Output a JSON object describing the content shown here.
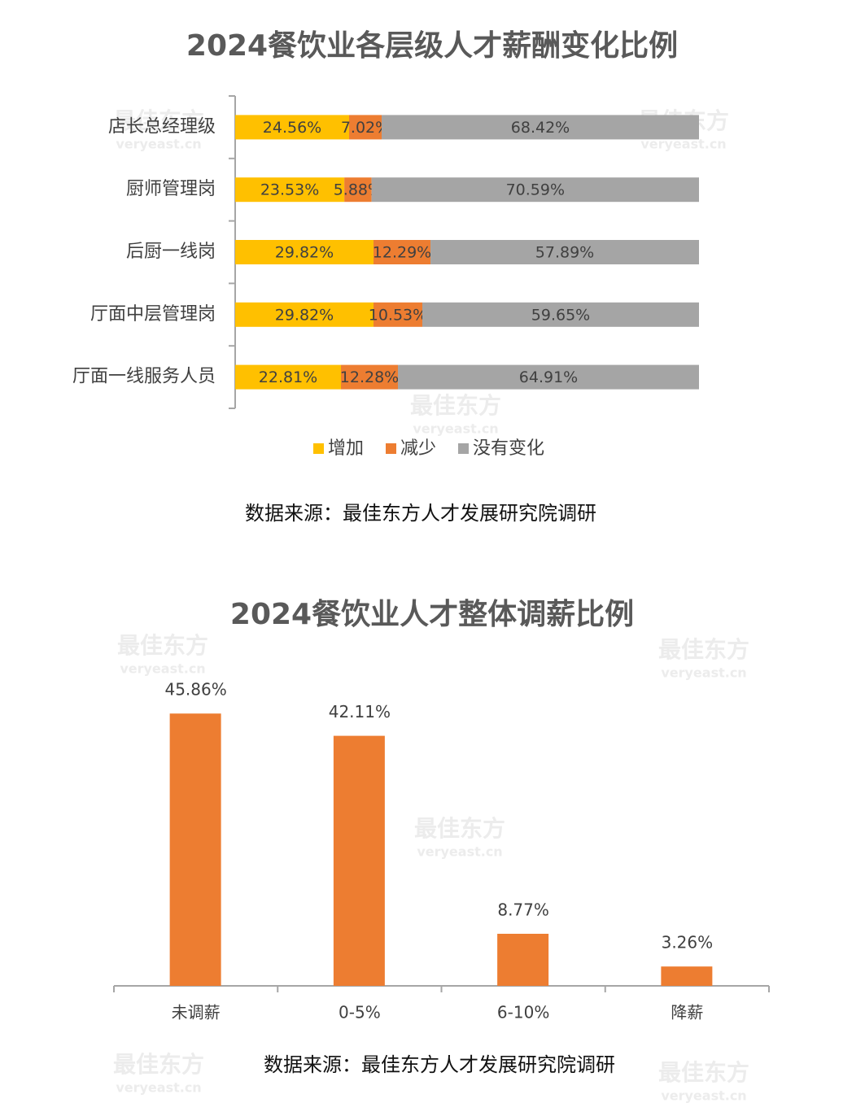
{
  "watermark": {
    "name": "最佳东方",
    "url": "veryeast.cn"
  },
  "chart_data": [
    {
      "type": "stacked-barh",
      "title": "2024餐饮业各层级人才薪酬变化比例",
      "categories": [
        "店长总经理级",
        "厨师管理岗",
        "后厨一线岗",
        "厅面中层管理岗",
        "厅面一线服务人员"
      ],
      "series": [
        {
          "name": "增加",
          "color": "#ffc000",
          "values": [
            24.56,
            23.53,
            29.82,
            29.82,
            22.81
          ],
          "value_labels": [
            "24.56%",
            "23.53%",
            "29.82%",
            "29.82%",
            "22.81%"
          ]
        },
        {
          "name": "减少",
          "color": "#ed7d31",
          "values": [
            7.02,
            5.88,
            12.29,
            10.53,
            12.28
          ],
          "value_labels": [
            "7.02%",
            "5.88%",
            "12.29%",
            "10.53%",
            "12.28%"
          ]
        },
        {
          "name": "没有变化",
          "color": "#a5a5a5",
          "values": [
            68.42,
            70.59,
            57.89,
            59.65,
            64.91
          ],
          "value_labels": [
            "68.42%",
            "70.59%",
            "57.89%",
            "59.65%",
            "64.91%"
          ]
        }
      ],
      "source": "数据来源：最佳东方人才发展研究院调研"
    },
    {
      "type": "bar",
      "title": "2024餐饮业人才整体调薪比例",
      "categories": [
        "未调薪",
        "0-5%",
        "6-10%",
        "降薪"
      ],
      "values": [
        45.86,
        42.11,
        8.77,
        3.26
      ],
      "value_labels": [
        "45.86%",
        "42.11%",
        "8.77%",
        "3.26%"
      ],
      "color": "#ed7d31",
      "source": "数据来源：最佳东方人才发展研究院调研"
    }
  ]
}
